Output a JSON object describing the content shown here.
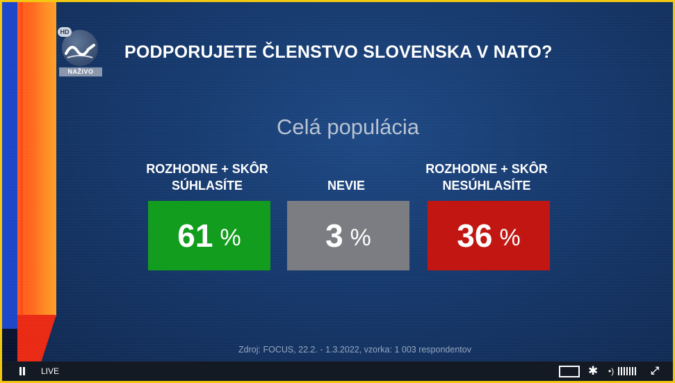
{
  "channel": {
    "hd_badge": "HD",
    "live_badge": "NAŽIVO"
  },
  "slide": {
    "question": "PODPORUJETE ČLENSTVO SLOVENSKA V NATO?",
    "subtitle": "Celá populácia",
    "answers": [
      {
        "label_line1": "ROZHODNE + SKÔR",
        "label_line2": "SÚHLASÍTE",
        "value": "61",
        "unit": "%",
        "color": "#129d1e"
      },
      {
        "label_line1": "NEVIE",
        "label_line2": "",
        "value": "3",
        "unit": "%",
        "color": "#7b7d82"
      },
      {
        "label_line1": "ROZHODNE + SKÔR",
        "label_line2": "NESÚHLASÍTE",
        "value": "36",
        "unit": "%",
        "color": "#c21612"
      }
    ],
    "source": "Zdroj: FOCUS, 22.2. - 1.3.2022, vzorka: 1 003 respondentov"
  },
  "player": {
    "live_label": "LIVE",
    "icons": [
      "pause-icon",
      "screen-mode-icon",
      "gear-icon",
      "volume-icon",
      "fullscreen-icon"
    ]
  }
}
